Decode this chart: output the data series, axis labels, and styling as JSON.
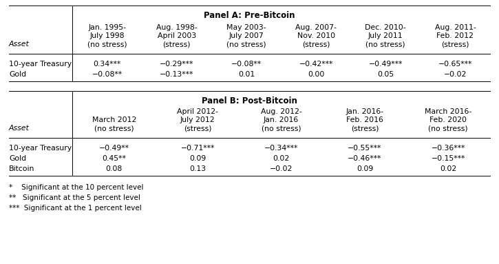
{
  "panel_a_title": "Panel A: Pre-Bitcoin",
  "panel_b_title": "Panel B: Post-Bitcoin",
  "panel_a_headers_line1": [
    "",
    "Jan. 1995-",
    "Aug. 1998-",
    "May 2003-",
    "Aug. 2007-",
    "Dec. 2010-",
    "Aug. 2011-"
  ],
  "panel_a_headers_line2": [
    "",
    "July 1998",
    "April 2003",
    "July 2007",
    "Nov. 2010",
    "July 2011",
    "Feb. 2012"
  ],
  "panel_a_headers_line3": [
    "Asset",
    "(no stress)",
    "(stress)",
    "(no stress)",
    "(stress)",
    "(no stress)",
    "(stress)"
  ],
  "panel_a_rows": [
    [
      "10-year Treasury",
      "0.34***",
      "−0.29***",
      "−0.08**",
      "−0.42***",
      "−0.49***",
      "−0.65***"
    ],
    [
      "Gold",
      "−0.08**",
      "−0.13***",
      "0.01",
      "0.00",
      "0.05",
      "−0.02"
    ]
  ],
  "panel_b_headers_line1": [
    "",
    "",
    "April 2012-",
    "Aug. 2012-",
    "Jan. 2016-",
    "March 2016-"
  ],
  "panel_b_headers_line2": [
    "",
    "March 2012",
    "July 2012",
    "Jan. 2016",
    "Feb. 2016",
    "Feb. 2020"
  ],
  "panel_b_headers_line3": [
    "Asset",
    "(no stress)",
    "(stress)",
    "(no stress)",
    "(stress)",
    "(no stress)"
  ],
  "panel_b_rows": [
    [
      "10-year Treasury",
      "−0.49**",
      "−0.71***",
      "−0.34***",
      "−0.55***",
      "−0.36***"
    ],
    [
      "Gold",
      "0.45**",
      "0.09",
      "0.02",
      "−0.46***",
      "−0.15***"
    ],
    [
      "Bitcoin",
      "0.08",
      "0.13",
      "−0.02",
      "0.09",
      "0.02"
    ]
  ],
  "footnotes": [
    "*    Significant at the 10 percent level",
    "**   Significant at the 5 percent level",
    "***  Significant at the 1 percent level"
  ],
  "bg_color": "#ffffff",
  "line_color": "#000000",
  "text_color": "#000000",
  "title_fontsize": 8.5,
  "header_fontsize": 7.8,
  "cell_fontsize": 7.8,
  "footnote_fontsize": 7.5,
  "asset_col_italic": true
}
